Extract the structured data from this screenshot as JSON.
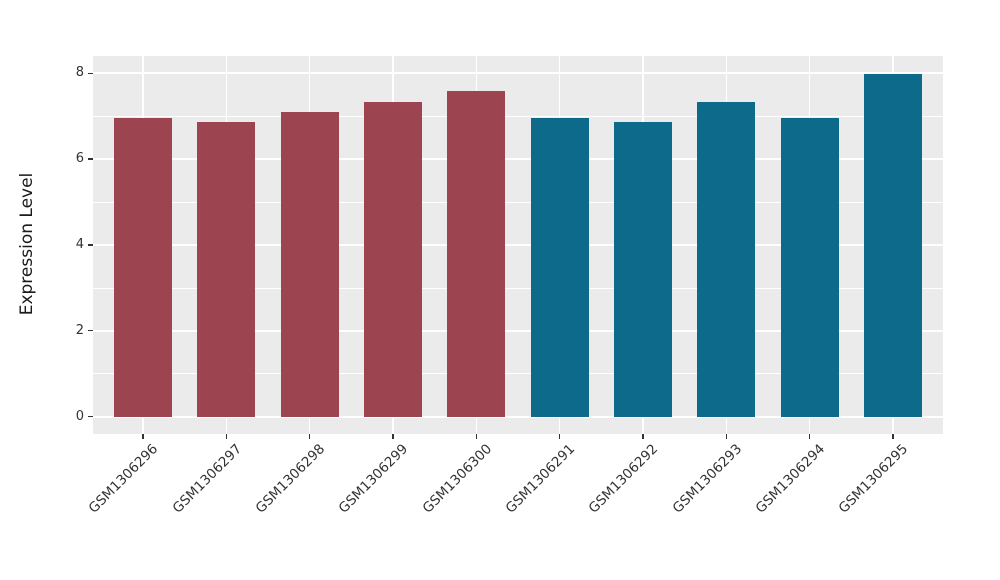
{
  "chart_data": {
    "type": "bar",
    "title": "",
    "xlabel": "",
    "ylabel": "Expression Level",
    "categories": [
      "GSM1306296",
      "GSM1306297",
      "GSM1306298",
      "GSM1306299",
      "GSM1306300",
      "GSM1306291",
      "GSM1306292",
      "GSM1306293",
      "GSM1306294",
      "GSM1306295"
    ],
    "values": [
      6.95,
      6.87,
      7.1,
      7.33,
      7.58,
      6.95,
      6.86,
      7.33,
      6.95,
      7.98
    ],
    "bar_colors": [
      "#9C4450",
      "#9C4450",
      "#9C4450",
      "#9C4450",
      "#9C4450",
      "#0E6A8B",
      "#0E6A8B",
      "#0E6A8B",
      "#0E6A8B",
      "#0E6A8B"
    ],
    "group_colors": {
      "left_group": "#9C4450",
      "right_group": "#0E6A8B"
    },
    "yticks": [
      0,
      2,
      4,
      6,
      8
    ],
    "minor_yticks": [
      1,
      3,
      5,
      7
    ],
    "ylim": [
      0,
      8
    ],
    "y_expand": 0.4,
    "bar_width_fraction": 0.7,
    "x_tick_rotation_deg": 45,
    "grid": true,
    "legend": "none",
    "panel_background": "#EBEBEB",
    "grid_color": "#FFFFFF",
    "text_color": "#333333"
  }
}
